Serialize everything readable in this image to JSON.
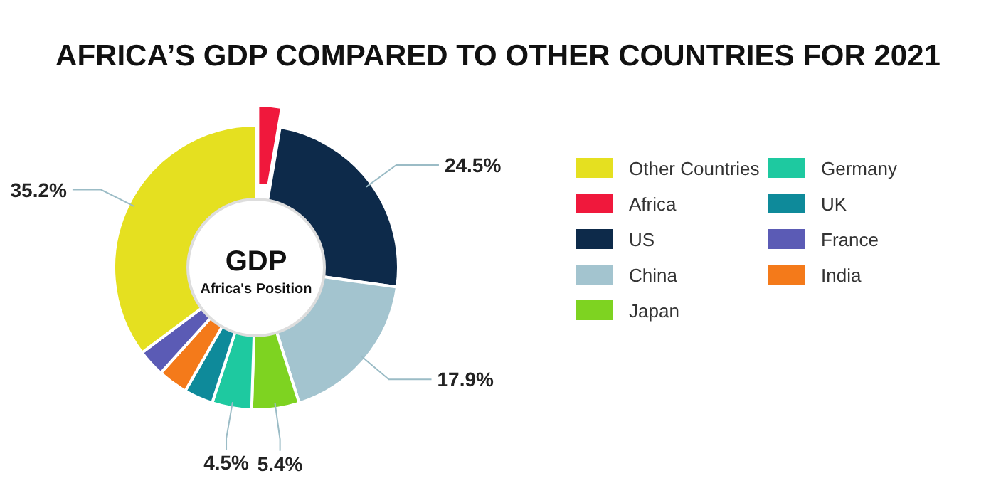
{
  "chart_data": {
    "type": "donut",
    "title": "AFRICA’S GDP COMPARED TO OTHER COUNTRIES FOR 2021",
    "categories": [
      "Africa",
      "US",
      "China",
      "Japan",
      "Germany",
      "UK",
      "India",
      "France",
      "Other Countries"
    ],
    "values": [
      2.7,
      24.5,
      17.9,
      5.4,
      4.5,
      3.3,
      3.4,
      3.1,
      35.2
    ],
    "colors": [
      "#f0183c",
      "#0d2a4a",
      "#a3c4cf",
      "#7ed321",
      "#1ec9a0",
      "#0e8a9a",
      "#f47a1a",
      "#5b5bb5",
      "#e5e020"
    ],
    "value_labels": [
      null,
      "24.5%",
      "17.9%",
      "5.4%",
      "4.5%",
      null,
      null,
      null,
      "35.2%"
    ],
    "annotations": [
      "GDP",
      "Africa's Position"
    ],
    "legend": "right"
  }
}
